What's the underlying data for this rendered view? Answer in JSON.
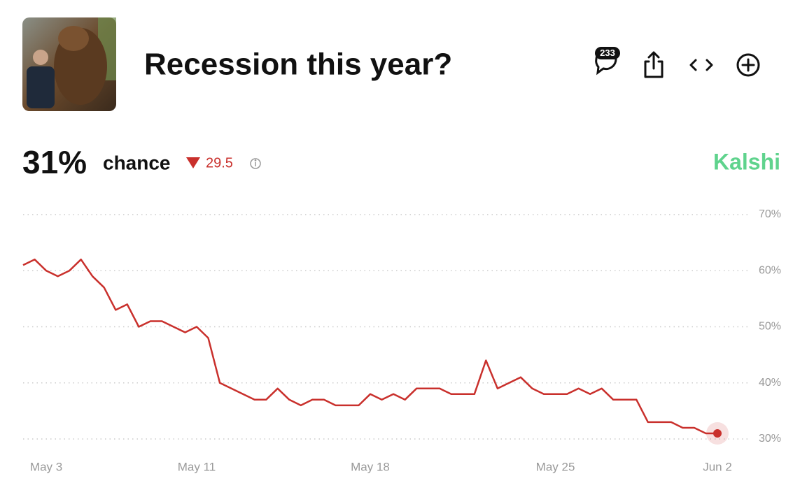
{
  "header": {
    "title": "Recession this year?",
    "comment_count": 233
  },
  "stats": {
    "probability": "31%",
    "probability_label": "chance",
    "change": 29.5,
    "source": "Kalshi"
  },
  "chart_data": {
    "type": "line",
    "categories": [
      null,
      null,
      "May 3",
      null,
      null,
      null,
      null,
      null,
      null,
      null,
      null,
      null,
      null,
      null,
      null,
      "May 11",
      null,
      null,
      null,
      null,
      null,
      null,
      null,
      null,
      null,
      null,
      null,
      null,
      null,
      null,
      "May 18",
      null,
      null,
      null,
      null,
      null,
      null,
      null,
      null,
      null,
      null,
      null,
      null,
      null,
      null,
      null,
      "May 25",
      null,
      null,
      null,
      null,
      null,
      null,
      null,
      null,
      null,
      null,
      null,
      null,
      null,
      "Jun 2"
    ],
    "values": [
      61,
      62,
      60,
      59,
      60,
      62,
      59,
      57,
      53,
      54,
      50,
      51,
      51,
      50,
      49,
      50,
      48,
      40,
      39,
      38,
      37,
      37,
      39,
      37,
      36,
      37,
      37,
      36,
      36,
      36,
      38,
      37,
      38,
      37,
      39,
      39,
      39,
      38,
      38,
      38,
      44,
      39,
      40,
      41,
      39,
      38,
      38,
      38,
      39,
      38,
      39,
      37,
      37,
      37,
      33,
      33,
      33,
      32,
      32,
      31,
      31
    ],
    "color": "#c9302c",
    "ylim": [
      30,
      70
    ],
    "yticks": [
      {
        "value": 30,
        "label": "30%"
      },
      {
        "value": 40,
        "label": "40%"
      },
      {
        "value": 50,
        "label": "50%"
      },
      {
        "value": 60,
        "label": "60%"
      },
      {
        "value": 70,
        "label": "70%"
      }
    ],
    "grid": true
  }
}
